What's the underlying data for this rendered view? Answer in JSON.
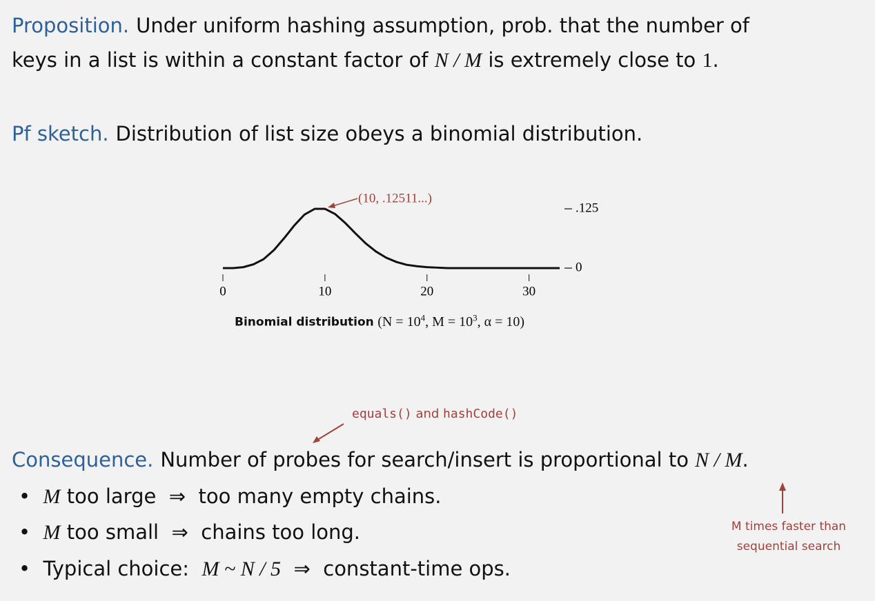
{
  "proposition": [
    "Proposition.",
    "Under uniform hashing assumption, prob. that the number of",
    "keys in a list is within a constant factor of",
    "N / M",
    "is extremely close to",
    "1",
    "."
  ],
  "proof": [
    "Pf sketch.",
    "Distribution of list size obeys a binomial distribution."
  ],
  "chart_data": {
    "type": "line",
    "x": [
      0,
      1,
      2,
      3,
      4,
      5,
      6,
      7,
      8,
      9,
      10,
      11,
      12,
      13,
      14,
      15,
      16,
      17,
      18,
      19,
      20,
      21,
      22,
      23,
      24,
      25,
      26,
      27,
      28,
      29,
      30,
      31,
      32,
      33
    ],
    "values": [
      0,
      0,
      0.002,
      0.008,
      0.019,
      0.038,
      0.063,
      0.09,
      0.113,
      0.125,
      0.125,
      0.114,
      0.095,
      0.073,
      0.052,
      0.035,
      0.022,
      0.013,
      0.007,
      0.004,
      0.002,
      0.001,
      0,
      0,
      0,
      0,
      0,
      0,
      0,
      0,
      0,
      0,
      0,
      0
    ],
    "color": "#111111",
    "xlim": [
      0,
      33
    ],
    "ylim": [
      0,
      0.125
    ],
    "xticks": [
      0,
      10,
      20,
      30
    ],
    "yticks": [
      0,
      {
        "value": 0.125,
        "label": ".125"
      }
    ],
    "annotation": "(10, .12511...)",
    "caption": [
      "Binomial distribution",
      "(N = 10",
      "4",
      ", M = 10",
      "3",
      ", α = 10)"
    ]
  },
  "note_equals": [
    "equals()",
    "and",
    "hashCode()"
  ],
  "consequence": [
    "Consequence.",
    "Number of probes for search/insert is proportional to",
    "N / M",
    "."
  ],
  "bullets": [
    [
      "M",
      "too large",
      "⇒",
      "too many empty chains."
    ],
    [
      "M",
      "too small",
      "⇒",
      "chains too long."
    ],
    [
      "Typical choice:",
      "M ~ N / 5",
      "⇒",
      "constant-time ops."
    ]
  ],
  "note_faster": [
    "M times faster than",
    "sequential search"
  ]
}
